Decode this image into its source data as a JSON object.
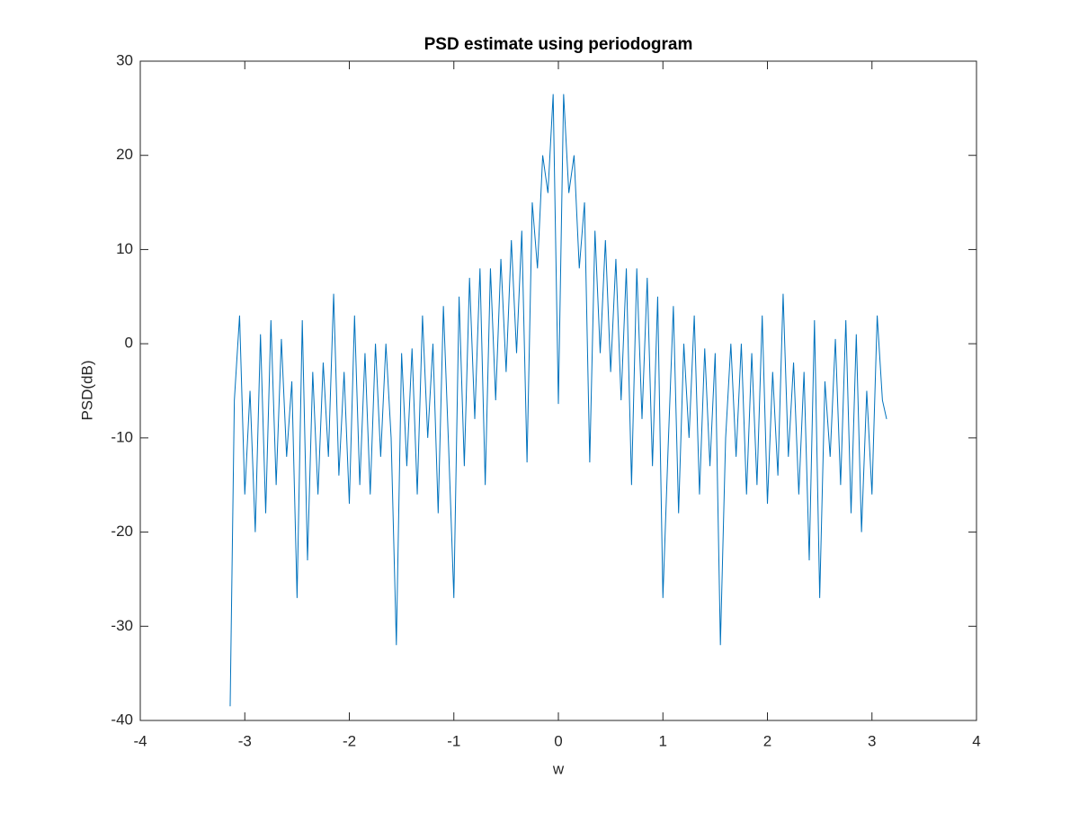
{
  "chart_data": {
    "type": "line",
    "title": "PSD estimate using periodogram",
    "x_label": "w",
    "y_label": "PSD(dB)",
    "x": [
      -3.14,
      -3.1,
      -3.05,
      -3.0,
      -2.95,
      -2.9,
      -2.85,
      -2.8,
      -2.75,
      -2.7,
      -2.65,
      -2.6,
      -2.55,
      -2.5,
      -2.45,
      -2.4,
      -2.35,
      -2.3,
      -2.25,
      -2.2,
      -2.15,
      -2.1,
      -2.05,
      -2.0,
      -1.95,
      -1.9,
      -1.85,
      -1.8,
      -1.75,
      -1.7,
      -1.65,
      -1.6,
      -1.55,
      -1.5,
      -1.45,
      -1.4,
      -1.35,
      -1.3,
      -1.25,
      -1.2,
      -1.15,
      -1.1,
      -1.05,
      -1.0,
      -0.95,
      -0.9,
      -0.85,
      -0.8,
      -0.75,
      -0.7,
      -0.65,
      -0.6,
      -0.55,
      -0.5,
      -0.45,
      -0.4,
      -0.35,
      -0.3,
      -0.25,
      -0.2,
      -0.15,
      -0.1,
      -0.05,
      0,
      0.05,
      0.1,
      0.15,
      0.2,
      0.25,
      0.3,
      0.35,
      0.4,
      0.45,
      0.5,
      0.55,
      0.6,
      0.65,
      0.7,
      0.75,
      0.8,
      0.85,
      0.9,
      0.95,
      1.0,
      1.05,
      1.1,
      1.15,
      1.2,
      1.25,
      1.3,
      1.35,
      1.4,
      1.45,
      1.5,
      1.55,
      1.6,
      1.65,
      1.7,
      1.75,
      1.8,
      1.85,
      1.9,
      1.95,
      2.0,
      2.05,
      2.1,
      2.15,
      2.2,
      2.25,
      2.3,
      2.35,
      2.4,
      2.45,
      2.5,
      2.55,
      2.6,
      2.65,
      2.7,
      2.75,
      2.8,
      2.85,
      2.9,
      2.95,
      3.0,
      3.05,
      3.1,
      3.14
    ],
    "series": [
      {
        "color": "#0072bd",
        "values": [
          -38.5,
          -6,
          3,
          -16,
          -5,
          -20,
          1,
          -18,
          2.5,
          -15,
          0.5,
          -12,
          -4,
          -27,
          2.5,
          -23,
          -3,
          -16,
          -2,
          -12,
          5.3,
          -14,
          -3,
          -17,
          3,
          -15,
          -1,
          -16,
          0,
          -12,
          0,
          -10,
          -32,
          -1,
          -13,
          -0.5,
          -16,
          3,
          -10,
          0,
          -18,
          4,
          -11,
          -27,
          5,
          -13,
          7,
          -8,
          8,
          -15,
          8,
          -6,
          9,
          -3,
          11,
          -1,
          12,
          -12.6,
          15,
          8,
          20,
          16,
          26.5,
          -6.4,
          26.5,
          16,
          20,
          8,
          15,
          -12.6,
          12,
          -1,
          11,
          -3,
          9,
          -6,
          8,
          -15,
          8,
          -8,
          7,
          -13,
          5,
          -27,
          -11,
          4,
          -18,
          0,
          -10,
          3,
          -16,
          -0.5,
          -13,
          -1,
          -32,
          -10,
          0,
          -12,
          0,
          -16,
          -1,
          -15,
          3,
          -17,
          -3,
          -14,
          5.3,
          -12,
          -2,
          -16,
          -3,
          -23,
          2.5,
          -27,
          -4,
          -12,
          0.5,
          -15,
          2.5,
          -18,
          1,
          -20,
          -5,
          -16,
          3,
          -6,
          -8
        ]
      }
    ],
    "xlim": [
      -4,
      4
    ],
    "xticks": [
      -4,
      -3,
      -2,
      -1,
      0,
      1,
      2,
      3,
      4
    ],
    "ylim": [
      -40,
      30
    ],
    "yticks": [
      -40,
      -30,
      -20,
      -10,
      0,
      10,
      20,
      30
    ]
  }
}
